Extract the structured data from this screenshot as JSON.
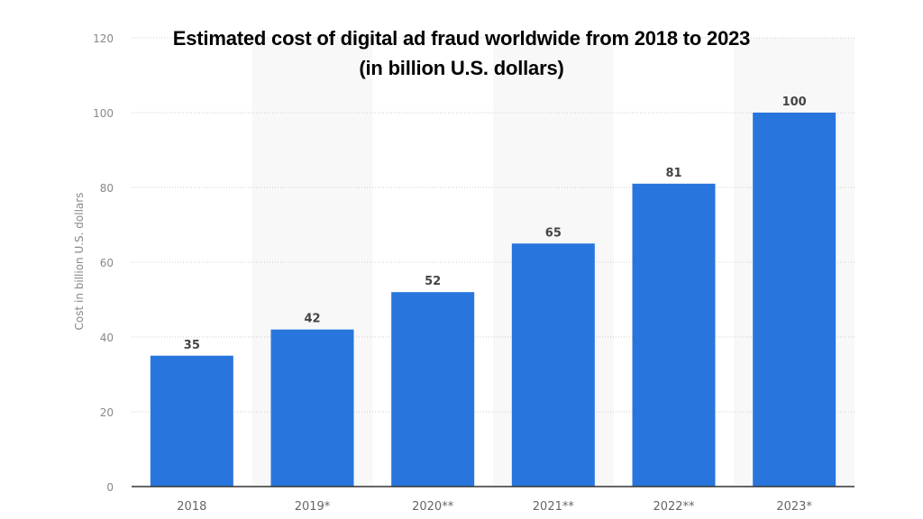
{
  "chart_data": {
    "type": "bar",
    "title": "Estimated cost of digital ad fraud worldwide from 2018 to 2023",
    "subtitle": "(in billion U.S. dollars)",
    "categories": [
      "2018",
      "2019*",
      "2020**",
      "2021**",
      "2022**",
      "2023*"
    ],
    "values": [
      35,
      42,
      52,
      65,
      81,
      100
    ],
    "xlabel": "",
    "ylabel": "Cost in billion U.S. dollars",
    "ylim": [
      0,
      120
    ],
    "yticks": [
      0,
      20,
      40,
      60,
      80,
      100,
      120
    ],
    "grid": true,
    "data_labels": true,
    "colors": {
      "bar": "#2876dd",
      "band": "#f8f8f8",
      "grid": "#cccccc",
      "axis": "#333333"
    }
  }
}
